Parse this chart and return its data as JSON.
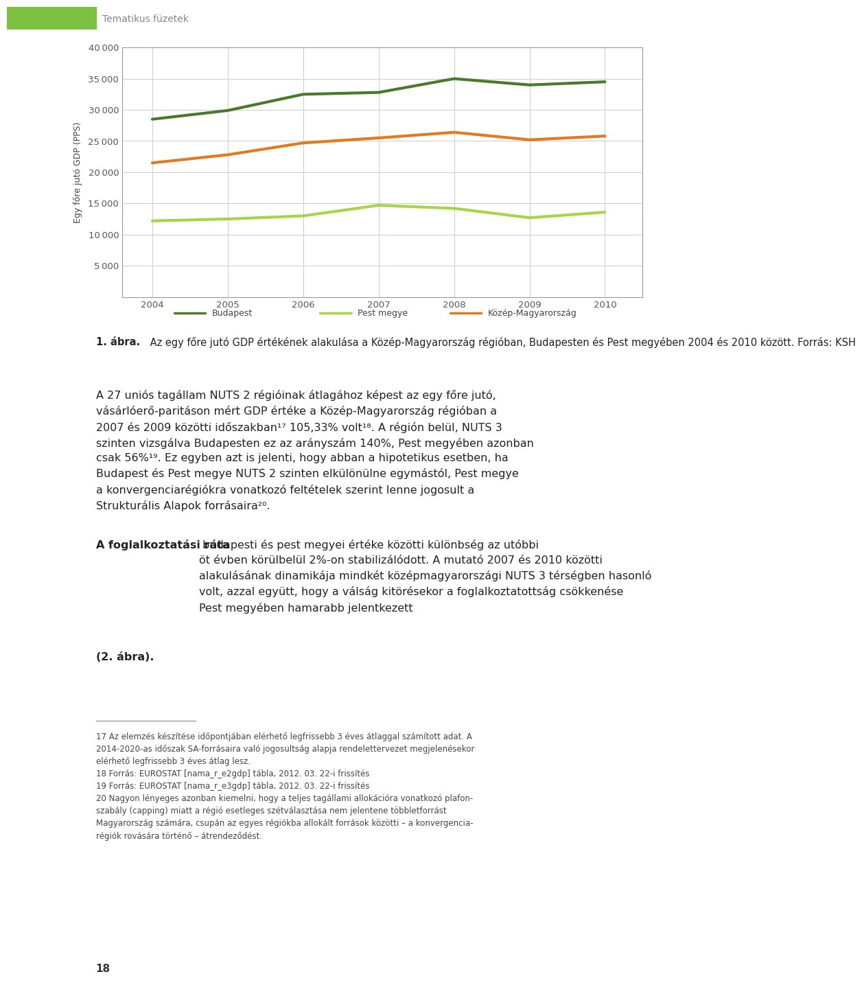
{
  "years": [
    2004,
    2005,
    2006,
    2007,
    2008,
    2009,
    2010
  ],
  "budapest": [
    28500,
    29900,
    32500,
    32800,
    35000,
    34000,
    34500
  ],
  "kozep_magyarorszag": [
    21500,
    22800,
    24700,
    25500,
    26400,
    25200,
    25800
  ],
  "pest_megye": [
    12200,
    12500,
    13000,
    14700,
    14200,
    12700,
    13600
  ],
  "color_budapest": "#4a7a29",
  "color_kozep": "#e07b20",
  "color_pest": "#a8d44a",
  "ylabel": "Egy főre jutó GDP (PPS)",
  "ylim": [
    0,
    40000
  ],
  "yticks": [
    5000,
    10000,
    15000,
    20000,
    25000,
    30000,
    35000,
    40000
  ],
  "legend_budapest": "Budapest",
  "legend_pest": "Pest megye",
  "legend_kozep": "Közép-Magyarország",
  "line_width": 3.0,
  "grid_color": "#cccccc",
  "header_color": "#7dc142",
  "header_text": "Tematikus füzetek",
  "page_bg": "#ffffff",
  "chart_border_color": "#999999",
  "tick_label_color": "#555555",
  "caption_bold": "1. ábra.",
  "caption_rest": " Az egy főre jutó GDP értékének alakulása a Közép-Magyarország régióban, Budapesten és Pest megyében 2004 és 2010 között. Forrás: KSH",
  "body1": "A 27 uniós tagállam NUTS 2 régióinak átlagához képest az egy főre jutó, vásárlóerő-paritáson mért GDP értéke a Közép-Magyarország régióban a 2007 és 2009 közötti időszakban",
  "body1_sup17": "17",
  "body1b": " 105,33% volt",
  "body1_sup18": "18",
  "body1c": ". A régión belül, NUTS 3 szinten vizsgálva Budapesten ez az arányszám 140%, Pest megyében azonban csak 56%",
  "body1_sup19": "19",
  "body1d": ". Ez egyben azt is jelenti, hogy abban a hipotetikus esetben, ha Budapest és Pest megye NUTS 2 szinten elkülönülne egymástól, Pest megye a konvergenciarégiókra vonatkozó feltételek szerint lenne jogosult a Strukturális Alapok forrásaira",
  "body1_sup20": "20",
  "body1e": ".",
  "body2_bold": "A foglalkoztatási ráta",
  "body2_rest": " budapesti és pest megyei értéke közötti különbség az utóbbi öt évben körülbelül 2%-on stabilizálódott. A mutató 2007 és 2010 közötti alakulásának dinamikája mindkét középmagyarországi NUTS 3 térségben hasonló volt, azzal együtt, hogy a válság kitörésekor a foglalkoztatottság csökkenése Pest megyében hamarabb jelentkezett ",
  "body2_bold2": "(2. ábra).",
  "fn_line": "___",
  "fn17": "17 Az elemzés készítése időpontjában elérhető legfrissebb 3 éves átlaggal számított adat. A 2014-2020-as időszak SA-forrásaira való jogosultság alapja rendelettervezet megjelenésekor elérhető legfrissebb 3 éves átlag lesz.",
  "fn18": "18 Forrás: EUROSTAT [nama_r_e2gdp] tábla, 2012. 03. 22-i frissítés",
  "fn19": "19 Forrás: EUROSTAT [nama_r_e3gdp] tábla, 2012. 03. 22-i frissítés",
  "fn20": "20 Nagyon lényeges azonban kiemelni, hogy a teljes tagállami allokációra vonatkozó plafon-szabály (capping) miatt a régió esetleges szétválasztása nem jelentene többletforrást Magyarország számára, csupán az egyes régiókba allokált források közötti – a konvergenciarégiók rovására történő – átrendeződést.",
  "page_number": "18"
}
